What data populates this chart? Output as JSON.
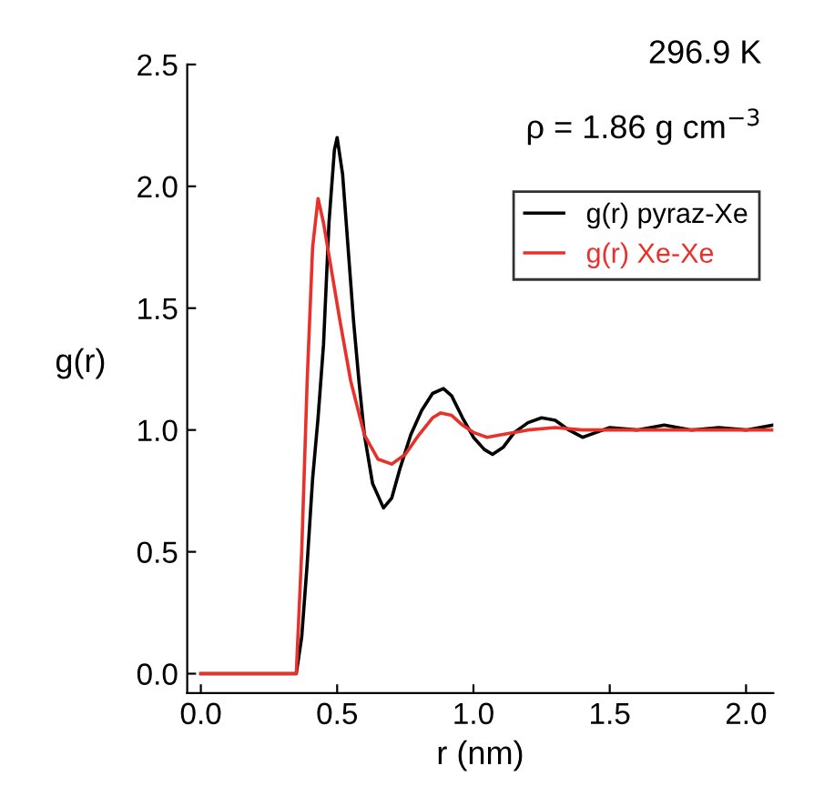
{
  "chart_data": {
    "type": "line",
    "xlabel": "r (nm)",
    "ylabel": "g(r)",
    "annotations": [
      "296.9 K",
      "ρ = 1.86 g cm$^{−3}$"
    ],
    "xlim": [
      -0.05,
      2.1
    ],
    "ylim": [
      -0.08,
      2.5
    ],
    "xticks": [
      {
        "value": 0,
        "label": "0.0"
      },
      0.5,
      {
        "value": 1,
        "label": "1.0"
      },
      1.5,
      {
        "value": 2,
        "label": "2.0"
      }
    ],
    "yticks": [
      {
        "value": 0,
        "label": "0.0"
      },
      0.5,
      {
        "value": 1,
        "label": "1.0"
      },
      1.5,
      {
        "value": 2,
        "label": "2.0"
      },
      2.5
    ],
    "grid": false,
    "legend": "top right",
    "marker": "none",
    "line_style": "solid",
    "series": [
      {
        "name": "g(r) pyraz-Xe",
        "color": "#000000",
        "x": [
          0.0,
          0.35,
          0.37,
          0.39,
          0.41,
          0.43,
          0.45,
          0.47,
          0.49,
          0.5,
          0.52,
          0.54,
          0.56,
          0.58,
          0.6,
          0.63,
          0.67,
          0.7,
          0.73,
          0.77,
          0.81,
          0.85,
          0.89,
          0.92,
          0.96,
          1.0,
          1.04,
          1.07,
          1.11,
          1.15,
          1.2,
          1.25,
          1.3,
          1.35,
          1.4,
          1.45,
          1.5,
          1.6,
          1.7,
          1.8,
          1.9,
          2.0,
          2.1
        ],
        "values": [
          0.0,
          0.0,
          0.15,
          0.45,
          0.8,
          1.05,
          1.35,
          1.85,
          2.15,
          2.2,
          2.05,
          1.75,
          1.45,
          1.2,
          0.98,
          0.78,
          0.68,
          0.72,
          0.84,
          0.98,
          1.08,
          1.15,
          1.17,
          1.14,
          1.05,
          0.97,
          0.92,
          0.9,
          0.93,
          0.99,
          1.03,
          1.05,
          1.04,
          1.0,
          0.97,
          0.99,
          1.01,
          1.0,
          1.02,
          1.0,
          1.01,
          1.0,
          1.02
        ]
      },
      {
        "name": "g(r) Xe-Xe",
        "color": "#e8312a",
        "x": [
          0.0,
          0.35,
          0.37,
          0.39,
          0.41,
          0.43,
          0.45,
          0.48,
          0.51,
          0.55,
          0.6,
          0.65,
          0.7,
          0.75,
          0.8,
          0.85,
          0.88,
          0.92,
          0.96,
          1.0,
          1.05,
          1.1,
          1.2,
          1.3,
          1.4,
          1.6,
          1.8,
          2.0,
          2.1
        ],
        "values": [
          0.0,
          0.0,
          0.5,
          1.2,
          1.75,
          1.95,
          1.85,
          1.65,
          1.45,
          1.2,
          0.98,
          0.88,
          0.86,
          0.9,
          0.98,
          1.05,
          1.07,
          1.06,
          1.02,
          0.99,
          0.97,
          0.98,
          1.0,
          1.01,
          1.0,
          1.0,
          1.0,
          1.0,
          1.0
        ]
      }
    ]
  }
}
